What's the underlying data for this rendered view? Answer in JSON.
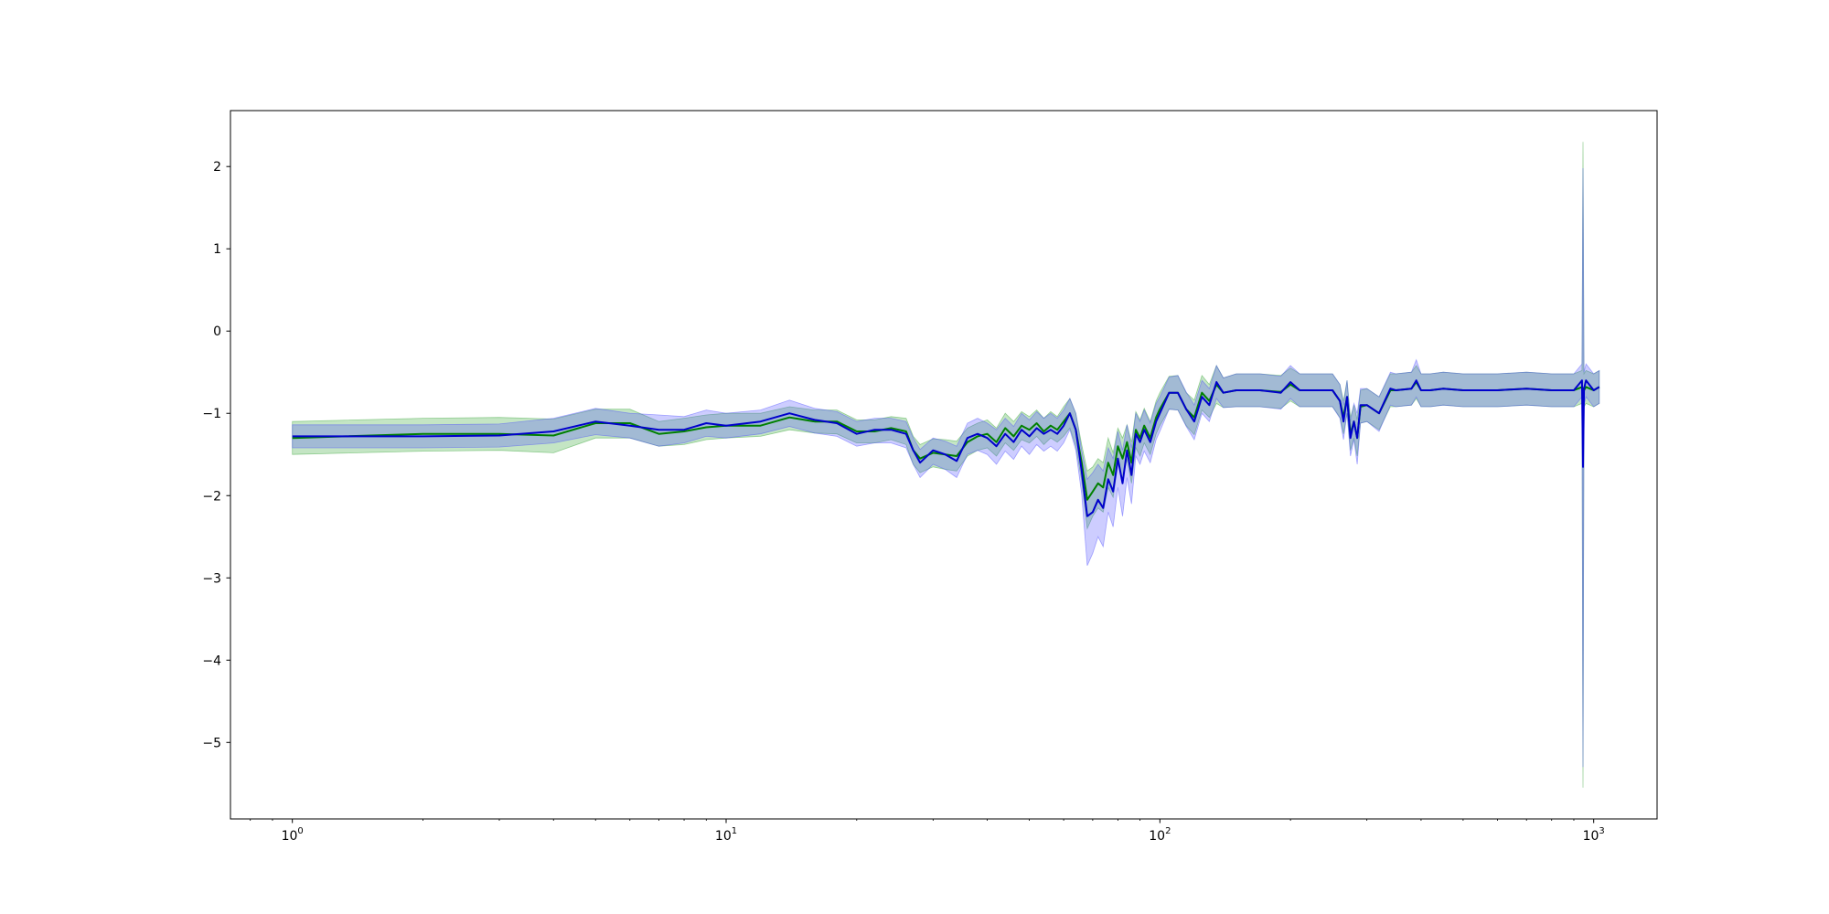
{
  "chart_data": {
    "type": "line",
    "title": "",
    "xlabel": "",
    "ylabel": "",
    "xscale": "log",
    "xlim": [
      0.72,
      1400
    ],
    "ylim": [
      -5.93,
      2.68
    ],
    "grid": false,
    "legend": "none",
    "x_ticks": [
      {
        "base": "10",
        "exp": "0",
        "value": 1
      },
      {
        "base": "10",
        "exp": "1",
        "value": 10
      },
      {
        "base": "10",
        "exp": "2",
        "value": 100
      },
      {
        "base": "10",
        "exp": "3",
        "value": 1000
      }
    ],
    "y_ticks": [
      {
        "label": "2",
        "value": 2
      },
      {
        "label": "1",
        "value": 1
      },
      {
        "label": "0",
        "value": 0
      },
      {
        "label": "−1",
        "value": -1
      },
      {
        "label": "−2",
        "value": -2
      },
      {
        "label": "−3",
        "value": -3
      },
      {
        "label": "−4",
        "value": -4
      },
      {
        "label": "−5",
        "value": -5
      }
    ],
    "series": [
      {
        "color": "#008000",
        "band_color": "#2ca02c",
        "band_opacity": 0.28,
        "x": [
          1,
          2,
          3,
          4,
          5,
          6,
          7,
          8,
          9,
          10,
          12,
          14,
          16,
          18,
          20,
          22,
          24,
          26,
          27,
          28,
          30,
          32,
          34,
          36,
          38,
          40,
          42,
          44,
          46,
          48,
          50,
          52,
          54,
          56,
          58,
          60,
          62,
          64,
          66,
          68,
          70,
          72,
          74,
          76,
          78,
          80,
          82,
          84,
          86,
          88,
          90,
          92,
          95,
          98,
          100,
          105,
          110,
          115,
          120,
          125,
          130,
          135,
          140,
          150,
          170,
          190,
          200,
          210,
          230,
          250,
          260,
          265,
          270,
          275,
          280,
          285,
          290,
          300,
          320,
          340,
          350,
          380,
          390,
          400,
          420,
          450,
          500,
          600,
          700,
          800,
          900,
          940,
          945,
          950,
          960,
          1000,
          1030
        ],
        "y": [
          -1.3,
          -1.25,
          -1.25,
          -1.27,
          -1.12,
          -1.12,
          -1.25,
          -1.22,
          -1.17,
          -1.15,
          -1.15,
          -1.05,
          -1.1,
          -1.1,
          -1.22,
          -1.22,
          -1.18,
          -1.22,
          -1.45,
          -1.55,
          -1.48,
          -1.5,
          -1.52,
          -1.35,
          -1.28,
          -1.25,
          -1.35,
          -1.18,
          -1.28,
          -1.15,
          -1.2,
          -1.12,
          -1.22,
          -1.15,
          -1.2,
          -1.1,
          -1.0,
          -1.2,
          -1.6,
          -2.05,
          -1.95,
          -1.85,
          -1.9,
          -1.6,
          -1.75,
          -1.4,
          -1.55,
          -1.35,
          -1.6,
          -1.2,
          -1.3,
          -1.15,
          -1.3,
          -1.05,
          -0.95,
          -0.75,
          -0.75,
          -0.95,
          -1.05,
          -0.75,
          -0.85,
          -0.65,
          -0.75,
          -0.72,
          -0.72,
          -0.74,
          -0.65,
          -0.72,
          -0.72,
          -0.72,
          -0.85,
          -1.05,
          -0.8,
          -1.25,
          -1.1,
          -1.3,
          -0.92,
          -0.9,
          -1.0,
          -0.72,
          -0.72,
          -0.7,
          -0.62,
          -0.72,
          -0.72,
          -0.7,
          -0.72,
          -0.72,
          -0.7,
          -0.72,
          -0.72,
          -0.68,
          -0.7,
          -0.72,
          -0.68,
          -0.72,
          -0.68
        ],
        "lower": [
          -1.5,
          -1.46,
          -1.45,
          -1.48,
          -1.3,
          -1.3,
          -1.4,
          -1.38,
          -1.32,
          -1.3,
          -1.28,
          -1.2,
          -1.24,
          -1.25,
          -1.36,
          -1.36,
          -1.32,
          -1.38,
          -1.62,
          -1.72,
          -1.65,
          -1.68,
          -1.7,
          -1.52,
          -1.45,
          -1.42,
          -1.52,
          -1.36,
          -1.45,
          -1.32,
          -1.36,
          -1.28,
          -1.38,
          -1.3,
          -1.35,
          -1.28,
          -1.18,
          -1.4,
          -1.82,
          -2.4,
          -2.25,
          -2.15,
          -2.2,
          -1.9,
          -2.02,
          -1.62,
          -1.8,
          -1.56,
          -1.85,
          -1.42,
          -1.52,
          -1.36,
          -1.5,
          -1.25,
          -1.15,
          -0.95,
          -0.96,
          -1.15,
          -1.26,
          -0.96,
          -1.05,
          -0.88,
          -0.93,
          -0.92,
          -0.92,
          -0.94,
          -0.85,
          -0.92,
          -0.92,
          -0.92,
          -1.05,
          -1.25,
          -1.0,
          -1.45,
          -1.3,
          -1.52,
          -1.12,
          -1.1,
          -1.2,
          -0.92,
          -0.92,
          -0.9,
          -0.82,
          -0.92,
          -0.92,
          -0.9,
          -0.92,
          -0.92,
          -0.9,
          -0.92,
          -0.92,
          -0.88,
          -5.55,
          -0.92,
          -0.88,
          -0.92,
          -0.88
        ],
        "upper": [
          -1.1,
          -1.06,
          -1.05,
          -1.07,
          -0.95,
          -0.95,
          -1.1,
          -1.06,
          -1.02,
          -1.0,
          -1.0,
          -0.92,
          -0.96,
          -0.96,
          -1.08,
          -1.08,
          -1.04,
          -1.06,
          -1.28,
          -1.38,
          -1.31,
          -1.32,
          -1.34,
          -1.18,
          -1.12,
          -1.08,
          -1.18,
          -1.0,
          -1.1,
          -0.98,
          -1.04,
          -0.96,
          -1.06,
          -0.98,
          -1.04,
          -0.92,
          -0.82,
          -1.0,
          -1.38,
          -1.7,
          -1.65,
          -1.55,
          -1.6,
          -1.3,
          -1.48,
          -1.18,
          -1.3,
          -1.14,
          -1.35,
          -0.98,
          -1.08,
          -0.94,
          -1.1,
          -0.85,
          -0.75,
          -0.55,
          -0.54,
          -0.75,
          -0.84,
          -0.54,
          -0.65,
          -0.42,
          -0.57,
          -0.52,
          -0.52,
          -0.54,
          -0.45,
          -0.52,
          -0.52,
          -0.52,
          -0.65,
          -0.85,
          -0.6,
          -1.05,
          -0.9,
          -1.08,
          -0.72,
          -0.7,
          -0.8,
          -0.52,
          -0.52,
          -0.5,
          -0.42,
          -0.52,
          -0.52,
          -0.5,
          -0.52,
          -0.52,
          -0.5,
          -0.52,
          -0.52,
          -0.48,
          2.3,
          -0.52,
          -0.48,
          -0.52,
          -0.48
        ]
      },
      {
        "color": "#0000cc",
        "band_color": "#4a4aff",
        "band_opacity": 0.28,
        "x": [
          1,
          2,
          3,
          4,
          5,
          6,
          7,
          8,
          9,
          10,
          12,
          14,
          16,
          18,
          20,
          22,
          24,
          26,
          27,
          28,
          30,
          32,
          34,
          36,
          38,
          40,
          42,
          44,
          46,
          48,
          50,
          52,
          54,
          56,
          58,
          60,
          62,
          64,
          66,
          68,
          70,
          72,
          74,
          76,
          78,
          80,
          82,
          84,
          86,
          88,
          90,
          92,
          95,
          98,
          100,
          105,
          110,
          115,
          120,
          125,
          130,
          135,
          140,
          150,
          170,
          190,
          200,
          210,
          230,
          250,
          260,
          265,
          270,
          275,
          280,
          285,
          290,
          300,
          320,
          340,
          350,
          380,
          390,
          400,
          420,
          450,
          500,
          600,
          700,
          800,
          900,
          940,
          945,
          950,
          960,
          1000,
          1030
        ],
        "y": [
          -1.28,
          -1.28,
          -1.27,
          -1.22,
          -1.1,
          -1.15,
          -1.2,
          -1.2,
          -1.12,
          -1.15,
          -1.1,
          -1.0,
          -1.08,
          -1.12,
          -1.25,
          -1.2,
          -1.2,
          -1.25,
          -1.45,
          -1.6,
          -1.45,
          -1.5,
          -1.58,
          -1.3,
          -1.25,
          -1.3,
          -1.4,
          -1.25,
          -1.35,
          -1.2,
          -1.28,
          -1.18,
          -1.25,
          -1.2,
          -1.25,
          -1.15,
          -1.0,
          -1.2,
          -1.7,
          -2.25,
          -2.2,
          -2.05,
          -2.15,
          -1.8,
          -1.95,
          -1.55,
          -1.85,
          -1.45,
          -1.75,
          -1.25,
          -1.35,
          -1.2,
          -1.35,
          -1.1,
          -1.0,
          -0.75,
          -0.75,
          -0.95,
          -1.1,
          -0.8,
          -0.9,
          -0.62,
          -0.75,
          -0.72,
          -0.72,
          -0.75,
          -0.62,
          -0.72,
          -0.72,
          -0.72,
          -0.85,
          -1.1,
          -0.8,
          -1.3,
          -1.1,
          -1.3,
          -0.9,
          -0.9,
          -1.0,
          -0.7,
          -0.72,
          -0.7,
          -0.6,
          -0.72,
          -0.72,
          -0.7,
          -0.72,
          -0.72,
          -0.7,
          -0.72,
          -0.72,
          -0.6,
          -1.65,
          -0.7,
          -0.6,
          -0.72,
          -0.68
        ],
        "lower": [
          -1.42,
          -1.42,
          -1.41,
          -1.36,
          -1.26,
          -1.3,
          -1.4,
          -1.36,
          -1.28,
          -1.3,
          -1.25,
          -1.16,
          -1.24,
          -1.28,
          -1.4,
          -1.36,
          -1.36,
          -1.42,
          -1.62,
          -1.78,
          -1.62,
          -1.68,
          -1.78,
          -1.5,
          -1.45,
          -1.5,
          -1.62,
          -1.46,
          -1.56,
          -1.4,
          -1.5,
          -1.38,
          -1.46,
          -1.4,
          -1.46,
          -1.36,
          -1.2,
          -1.45,
          -1.98,
          -2.85,
          -2.7,
          -2.5,
          -2.62,
          -2.2,
          -2.38,
          -1.9,
          -2.25,
          -1.78,
          -2.1,
          -1.52,
          -1.62,
          -1.46,
          -1.6,
          -1.32,
          -1.22,
          -0.95,
          -0.96,
          -1.16,
          -1.32,
          -1.0,
          -1.1,
          -0.82,
          -0.93,
          -0.92,
          -0.92,
          -0.95,
          -0.82,
          -0.92,
          -0.92,
          -0.92,
          -1.06,
          -1.32,
          -1.0,
          -1.52,
          -1.32,
          -1.62,
          -1.12,
          -1.1,
          -1.22,
          -0.9,
          -0.92,
          -0.9,
          -0.8,
          -0.92,
          -0.92,
          -0.9,
          -0.92,
          -0.92,
          -0.9,
          -0.92,
          -0.92,
          -0.8,
          -5.3,
          -0.9,
          -0.8,
          -0.92,
          -0.88
        ],
        "upper": [
          -1.14,
          -1.14,
          -1.13,
          -1.06,
          -0.94,
          -1.0,
          -1.02,
          -1.04,
          -0.96,
          -1.0,
          -0.96,
          -0.84,
          -0.94,
          -0.98,
          -1.1,
          -1.06,
          -1.06,
          -1.1,
          -1.3,
          -1.44,
          -1.3,
          -1.34,
          -1.4,
          -1.12,
          -1.06,
          -1.12,
          -1.2,
          -1.06,
          -1.16,
          -1.0,
          -1.08,
          -0.98,
          -1.06,
          -1.0,
          -1.06,
          -0.96,
          -0.82,
          -1.0,
          -1.45,
          -1.8,
          -1.72,
          -1.62,
          -1.7,
          -1.42,
          -1.55,
          -1.22,
          -1.45,
          -1.14,
          -1.42,
          -1.0,
          -1.1,
          -0.96,
          -1.12,
          -0.88,
          -0.8,
          -0.56,
          -0.54,
          -0.74,
          -0.9,
          -0.6,
          -0.7,
          -0.42,
          -0.57,
          -0.52,
          -0.52,
          -0.55,
          -0.42,
          -0.52,
          -0.52,
          -0.52,
          -0.65,
          -0.9,
          -0.6,
          -1.1,
          -0.88,
          -1.0,
          -0.7,
          -0.7,
          -0.8,
          -0.5,
          -0.52,
          -0.5,
          -0.35,
          -0.52,
          -0.52,
          -0.5,
          -0.52,
          -0.52,
          -0.5,
          -0.52,
          -0.52,
          -0.4,
          1.98,
          -0.5,
          -0.4,
          -0.52,
          -0.48
        ]
      }
    ]
  }
}
